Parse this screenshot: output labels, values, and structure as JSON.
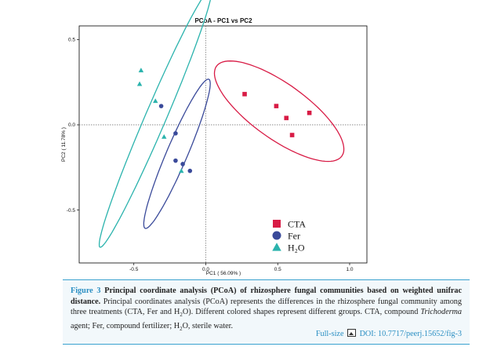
{
  "chart_data": {
    "type": "scatter",
    "title": "PCoA - PC1 vs PC2",
    "xlabel": "PC1 ( 56.09% )",
    "ylabel": "PC2 ( 11.78% )",
    "xlim": [
      -0.88,
      1.12
    ],
    "ylim": [
      -0.81,
      0.58
    ],
    "xticks": [
      "-0.5",
      "0.0",
      "0.5",
      "1.0"
    ],
    "xtick_values": [
      -0.5,
      0.0,
      0.5,
      1.0
    ],
    "yticks": [
      "0.5",
      "0.0",
      "-0.5"
    ],
    "ytick_values": [
      0.5,
      0.0,
      -0.5
    ],
    "grid": false,
    "reference_lines": "dotted lines at x=0 and y=0",
    "legend_position": "bottom-right",
    "series": [
      {
        "name": "CTA",
        "marker": "square",
        "color": "#d81b45",
        "points": [
          [
            0.27,
            0.18
          ],
          [
            0.49,
            0.11
          ],
          [
            0.56,
            0.04
          ],
          [
            0.6,
            -0.06
          ],
          [
            0.72,
            0.07
          ]
        ],
        "ellipse": {
          "cx": 0.51,
          "cy": 0.08,
          "rx": 0.51,
          "ry": 0.17,
          "angle_deg": -30
        }
      },
      {
        "name": "Fer",
        "marker": "circle",
        "color": "#3a4a9a",
        "points": [
          [
            -0.31,
            0.11
          ],
          [
            -0.21,
            -0.05
          ],
          [
            -0.21,
            -0.21
          ],
          [
            -0.16,
            -0.23
          ],
          [
            -0.11,
            -0.27
          ]
        ],
        "ellipse": {
          "cx": -0.2,
          "cy": -0.17,
          "rx": 0.49,
          "ry": 0.07,
          "angle_deg": 63
        }
      },
      {
        "name": "H₂O",
        "marker": "triangle",
        "color": "#2bb3ad",
        "points": [
          [
            -0.45,
            0.32
          ],
          [
            -0.46,
            0.24
          ],
          [
            -0.35,
            0.14
          ],
          [
            -0.29,
            -0.07
          ],
          [
            -0.17,
            -0.27
          ]
        ],
        "ellipse": {
          "cx": -0.35,
          "cy": 0.04,
          "rx": 0.85,
          "ry": 0.07,
          "angle_deg": 63
        }
      }
    ]
  },
  "caption": {
    "label": "Figure 3",
    "title": "Principal coordinate analysis (PCoA) of rhizosphere fungal communities based on weighted unifrac distance.",
    "body_1": "Principal coordinates analysis (PCoA) represents the differences in the rhizosphere fungal community among three treatments (CTA, Fer and H",
    "sub_2": "2",
    "body_2": "O). Different colored shapes represent different groups. CTA, compound ",
    "italic_term": "Trichoderma",
    "body_3": " agent; Fer, compound fertilizer; H",
    "body_4": "O, sterile water.",
    "fullsize_link": "Full-size",
    "doi_link": "DOI: 10.7717/peerj.15652/fig-3"
  }
}
